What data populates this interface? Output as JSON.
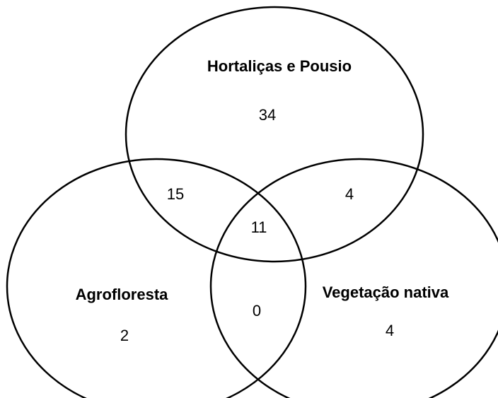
{
  "sets": [
    {
      "label": "Hortaliças e Pousio"
    },
    {
      "label": "Agrofloresta"
    },
    {
      "label": "Vegetação nativa"
    }
  ],
  "regions": {
    "hortalicas_only": 34,
    "hortalicas_agrofloresta": 15,
    "hortalicas_vegetacao": 4,
    "all_three": 11,
    "agrofloresta_only": 2,
    "agrofloresta_vegetacao": 0,
    "vegetacao_only": 4
  }
}
